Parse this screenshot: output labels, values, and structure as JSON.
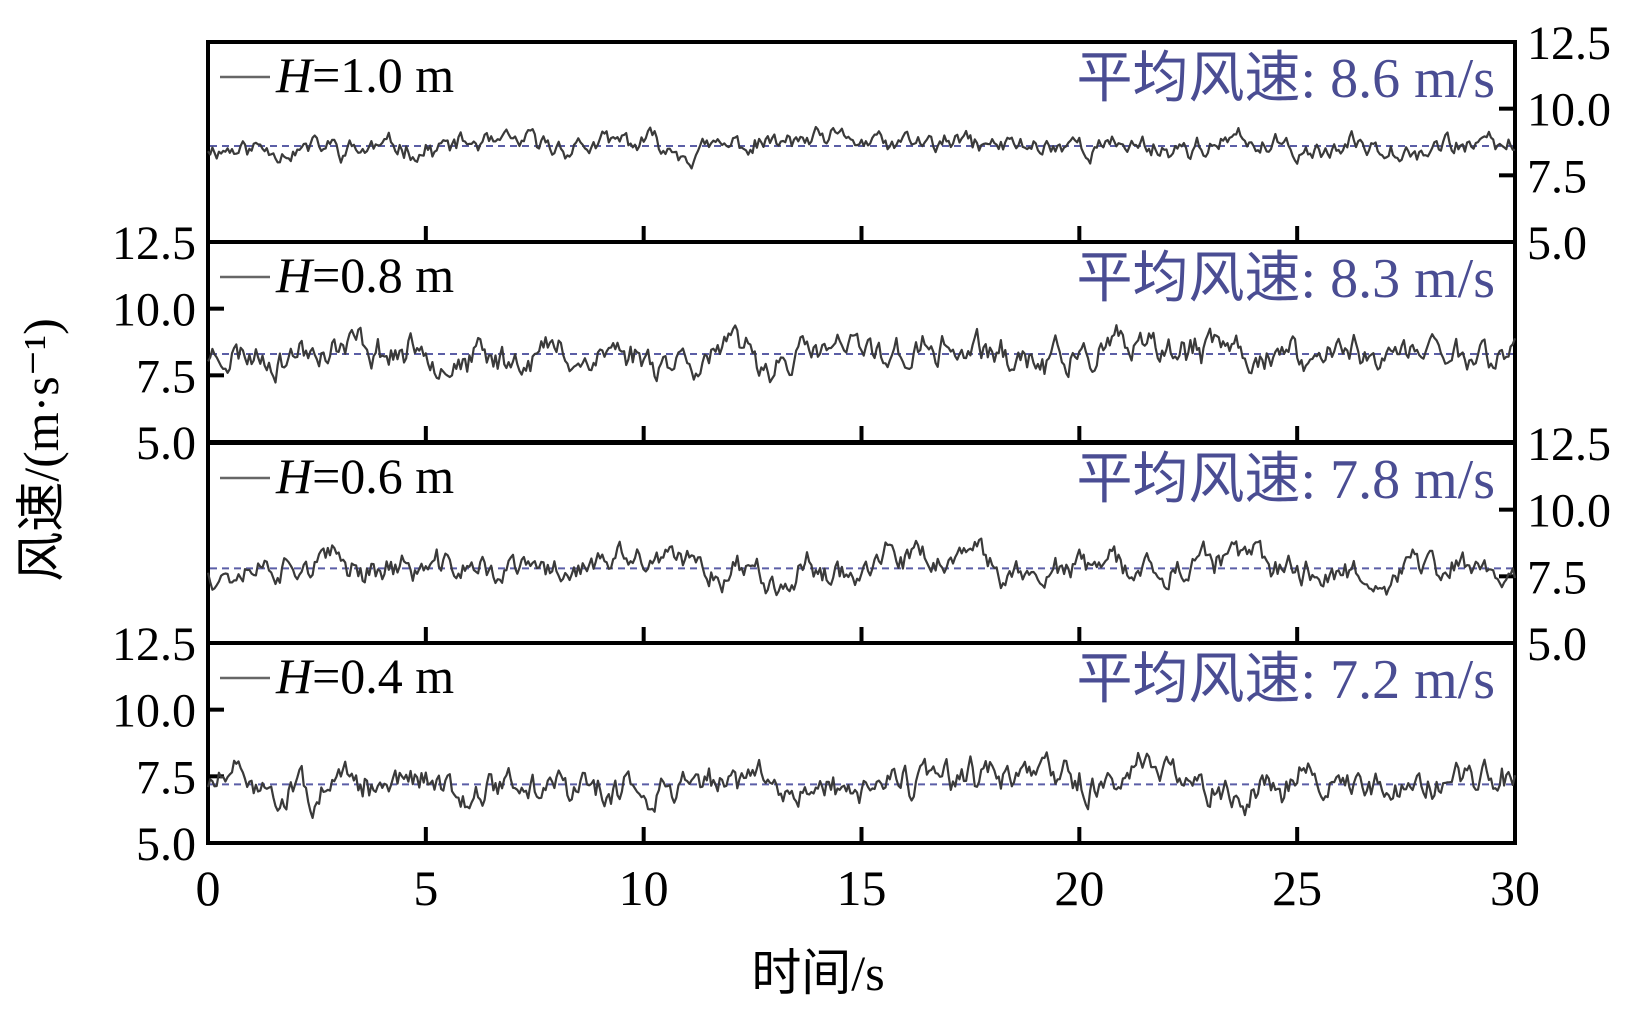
{
  "chart_data": {
    "type": "line",
    "xlabel": "时间/s",
    "ylabel": "风速/(m·s⁻¹)",
    "xlim": [
      0,
      30
    ],
    "x_ticks": [
      "0",
      "5",
      "10",
      "15",
      "20",
      "25",
      "30"
    ],
    "ylim": [
      5.0,
      12.5
    ],
    "y_ticks": [
      "5.0",
      "7.5",
      "10.0",
      "12.5"
    ],
    "colors": {
      "series": "#3a3a3a",
      "mean": "#5b5ea6",
      "annotation": "#4a4d93",
      "axis": "#000000"
    },
    "panels": [
      {
        "legend_prefix": "H",
        "legend_value": "=1.0 m",
        "annotation": "平均风速: 8.6 m/s",
        "mean": 8.6,
        "y_axis_side": "right",
        "seed": 11,
        "spread": 0.55
      },
      {
        "legend_prefix": "H",
        "legend_value": "=0.8 m",
        "annotation": "平均风速: 8.3 m/s",
        "mean": 8.3,
        "y_axis_side": "left",
        "seed": 23,
        "spread": 0.85
      },
      {
        "legend_prefix": "H",
        "legend_value": "=0.6 m",
        "annotation": "平均风速: 7.8 m/s",
        "mean": 7.8,
        "y_axis_side": "right",
        "seed": 37,
        "spread": 0.75
      },
      {
        "legend_prefix": "H",
        "legend_value": "=0.4 m",
        "annotation": "平均风速: 7.2 m/s",
        "mean": 7.2,
        "y_axis_side": "left",
        "seed": 51,
        "spread": 0.85
      }
    ]
  }
}
